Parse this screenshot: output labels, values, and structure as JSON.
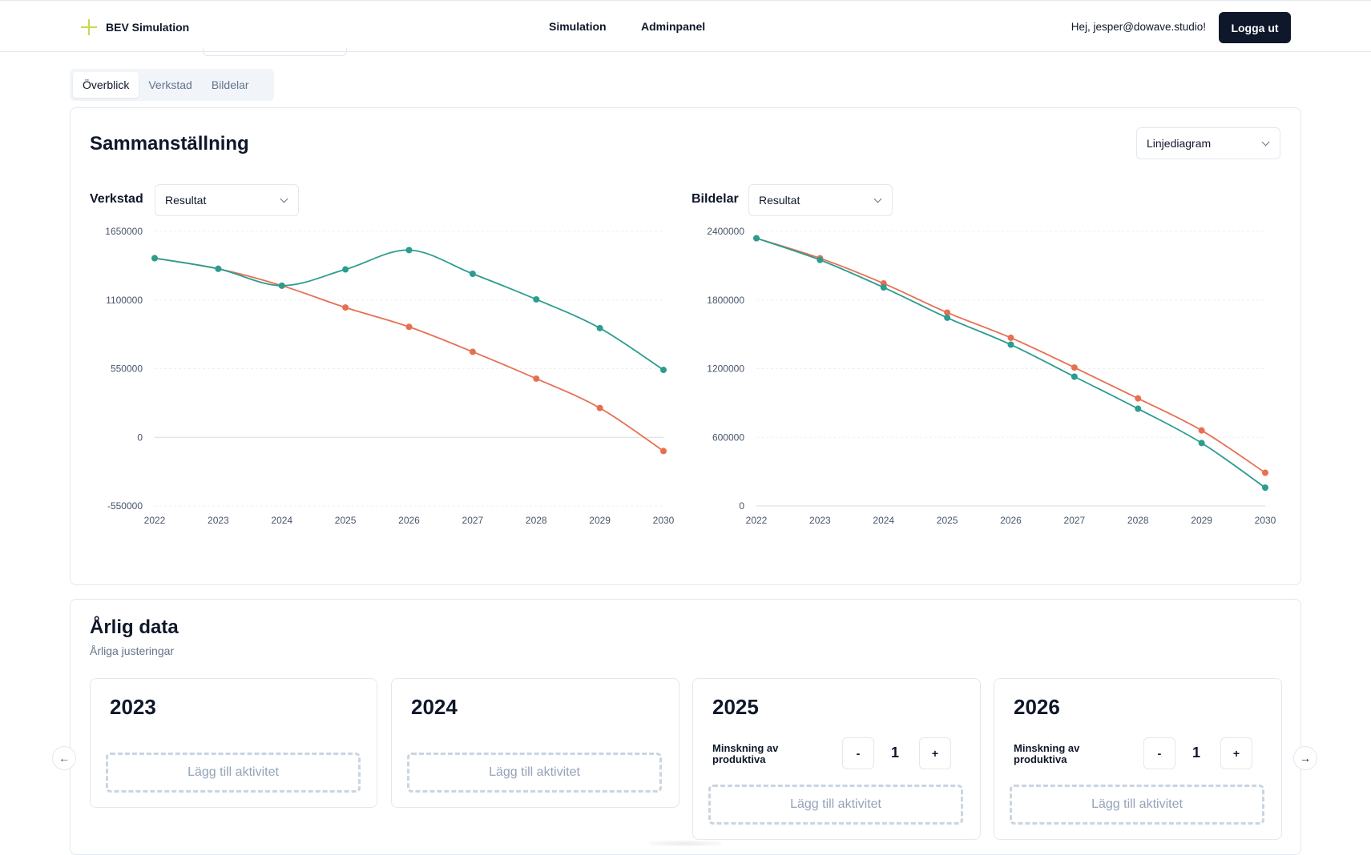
{
  "header": {
    "brand": "BEV Simulation",
    "nav": [
      "Simulation",
      "Adminpanel"
    ],
    "greeting": "Hej, jesper@dowave.studio!",
    "logout_label": "Logga ut",
    "brand_color": "#c8d84a"
  },
  "tabs": [
    {
      "label": "Överblick",
      "active": true
    },
    {
      "label": "Verkstad",
      "active": false
    },
    {
      "label": "Bildelar",
      "active": false
    }
  ],
  "summary": {
    "title": "Sammanställning",
    "chart_type_select": "Linjediagram",
    "verkstad": {
      "label": "Verkstad",
      "select": "Resultat"
    },
    "bildelar": {
      "label": "Bildelar",
      "select": "Resultat"
    }
  },
  "chart_data": [
    {
      "type": "line",
      "title": "Verkstad",
      "x": [
        "2022",
        "2023",
        "2024",
        "2025",
        "2026",
        "2027",
        "2028",
        "2029",
        "2030"
      ],
      "ylim": [
        -550000,
        1650000
      ],
      "yticks": [
        "1650000",
        "1100000",
        "550000",
        "0",
        "-550000"
      ],
      "grid": true,
      "series": [
        {
          "color": "#e76f51",
          "values": [
            1435000,
            1350000,
            1215000,
            1040000,
            885000,
            685000,
            470000,
            235000,
            -110000
          ]
        },
        {
          "color": "#2a9d8f",
          "values": [
            1435000,
            1350000,
            1215000,
            1345000,
            1500000,
            1310000,
            1105000,
            875000,
            540000
          ]
        }
      ]
    },
    {
      "type": "line",
      "title": "Bildelar",
      "x": [
        "2022",
        "2023",
        "2024",
        "2025",
        "2026",
        "2027",
        "2028",
        "2029",
        "2030"
      ],
      "ylim": [
        0,
        2400000
      ],
      "yticks": [
        "2400000",
        "1800000",
        "1200000",
        "600000",
        "0"
      ],
      "grid": true,
      "series": [
        {
          "color": "#e76f51",
          "values": [
            2340000,
            2165000,
            1945000,
            1690000,
            1470000,
            1210000,
            940000,
            660000,
            290000
          ]
        },
        {
          "color": "#2a9d8f",
          "values": [
            2340000,
            2150000,
            1910000,
            1645000,
            1410000,
            1130000,
            850000,
            550000,
            160000
          ]
        }
      ]
    }
  ],
  "annual": {
    "title": "Årlig data",
    "subtitle": "Årliga justeringar",
    "add_label": "Lägg till aktivitet",
    "cards": [
      {
        "year": "2023"
      },
      {
        "year": "2024"
      },
      {
        "year": "2025",
        "adjustment": {
          "label": "Minskning av produktiva",
          "value": "1",
          "minus": "-",
          "plus": "+"
        }
      },
      {
        "year": "2026",
        "adjustment": {
          "label": "Minskning av produktiva",
          "value": "1",
          "minus": "-",
          "plus": "+"
        }
      }
    ]
  },
  "icons": {
    "prev": "arrow-left-icon",
    "next": "arrow-right-icon",
    "dropdown": "chevron-down-icon"
  }
}
